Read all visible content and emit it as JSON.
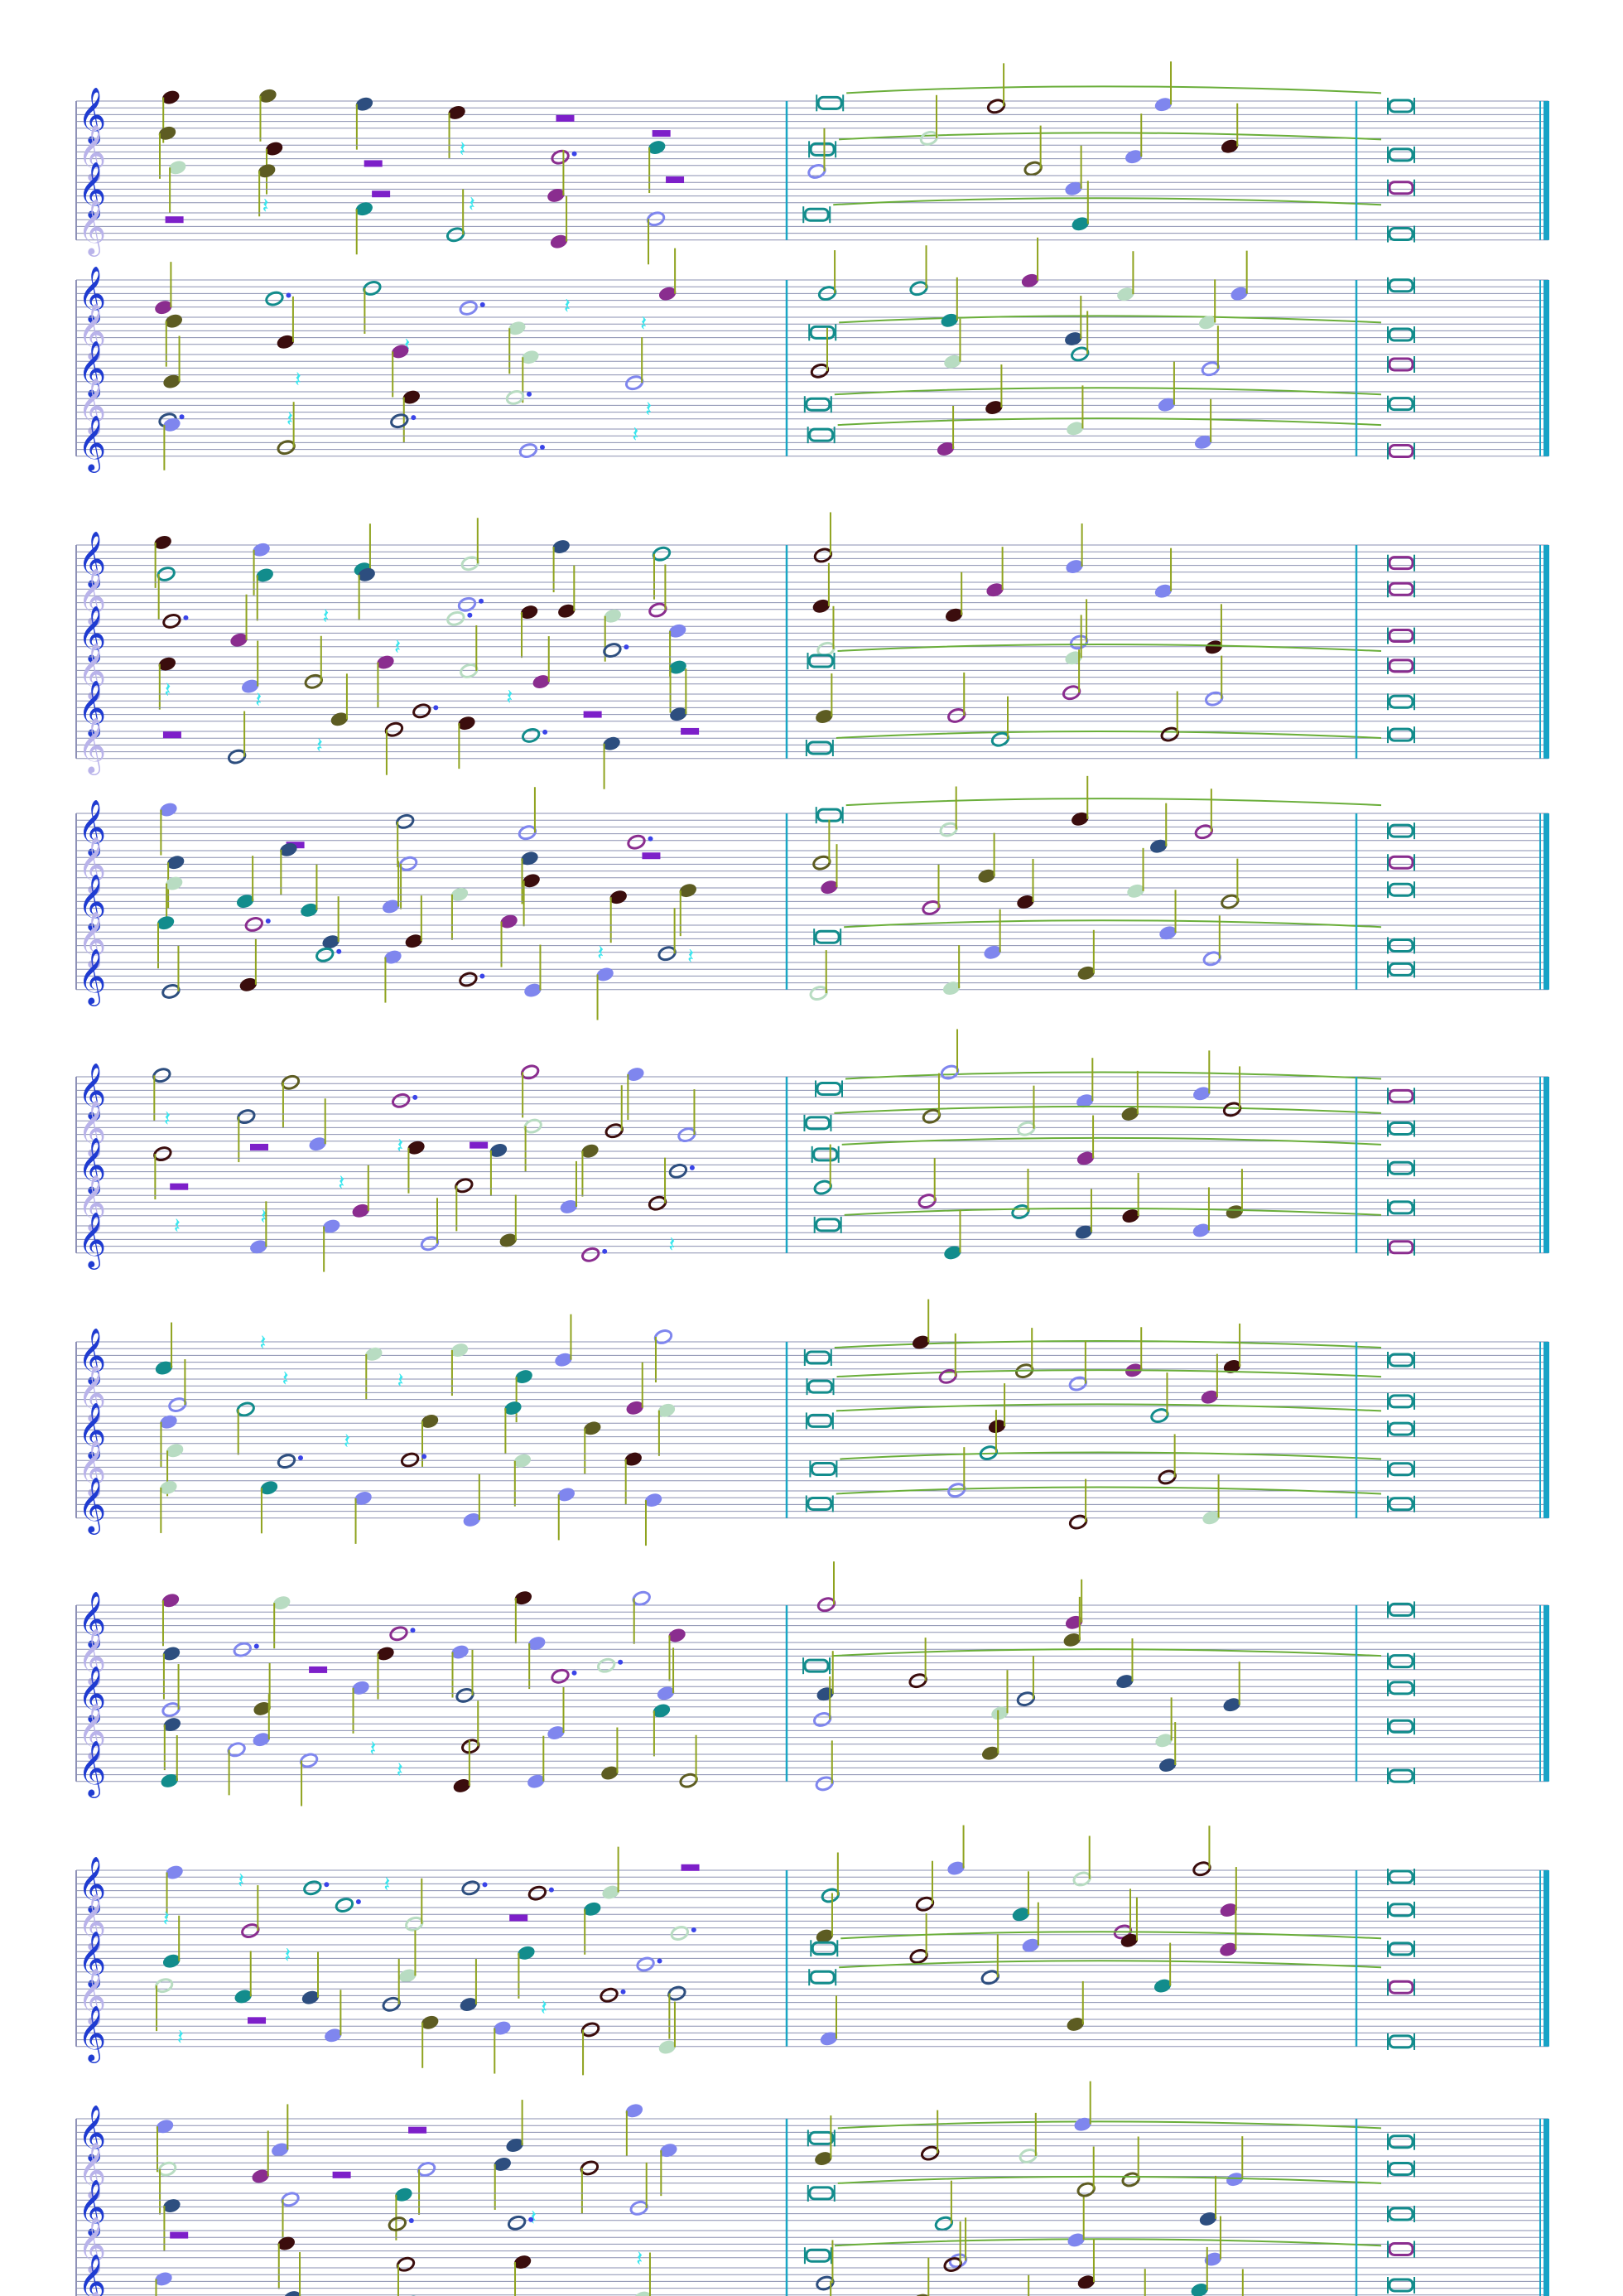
{
  "colors": {
    "staff_line": "#8a8fb0",
    "clef": "#1f3bd1",
    "clef_light": "#b9b3ea",
    "barline": "#1aa6c4",
    "final_barline": "#17a3c6",
    "tie": "#6aae3a",
    "stem": "#8fa31f",
    "note_blue": "#7f86ee",
    "note_dark": "#3b0d0d",
    "note_light_green": "#b8dcc2",
    "note_teal": "#128c8c",
    "note_purple": "#8a2d8f",
    "note_navy": "#2d4e7f",
    "note_olive": "#5d5c22",
    "rest_cyan": "#39e6ee",
    "rest_purple": "#7d1fc9",
    "rest_gold": "#f3c33a",
    "beam_purple": "#6e1fd0",
    "flag_cyan": "#24d3cf",
    "dot_blue": "#3a44e8"
  },
  "score": {
    "systems": [
      {
        "staves": 4
      },
      {
        "staves": 5
      },
      {
        "staves": 6
      },
      {
        "staves": 5
      },
      {
        "staves": 5
      },
      {
        "staves": 5
      },
      {
        "staves": 5
      },
      {
        "staves": 5
      },
      {
        "staves": 6
      }
    ],
    "icons": {
      "clef": "treble-clef-icon",
      "whole_note": "whole-note-icon",
      "breve": "breve-icon",
      "rest": "quarter-rest-icon",
      "half_rest": "half-rest-icon"
    }
  }
}
